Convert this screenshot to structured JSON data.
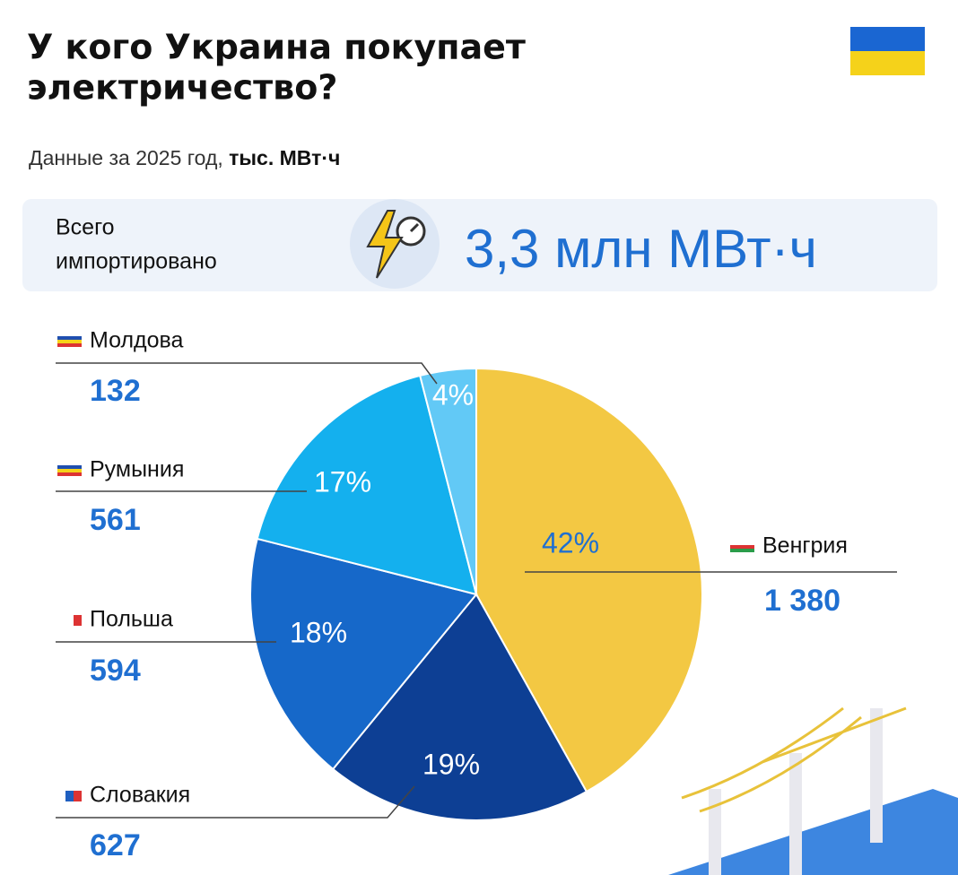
{
  "chart_data": {
    "type": "pie",
    "title": [
      "У кого Украина покупает",
      "электричество?"
    ],
    "subtitle": "Данные за 2025 год,",
    "unit": "тыс. МВт·ч",
    "total_label": [
      "Всего",
      "импортировано"
    ],
    "total_value": "3,3 млн МВт·ч",
    "categories": [
      "Венгрия",
      "Словакия",
      "Польша",
      "Румыния",
      "Молдова"
    ],
    "values": [
      1380,
      627,
      594,
      561,
      132
    ],
    "value_labels": [
      "1 380",
      "627",
      "594",
      "561",
      "132"
    ],
    "percent_labels": [
      "42%",
      "19%",
      "18%",
      "17%",
      "4%"
    ],
    "colors": [
      "#f3c843",
      "#0d3f94",
      "#1668c9",
      "#14b0ee",
      "#62c9f6"
    ]
  }
}
